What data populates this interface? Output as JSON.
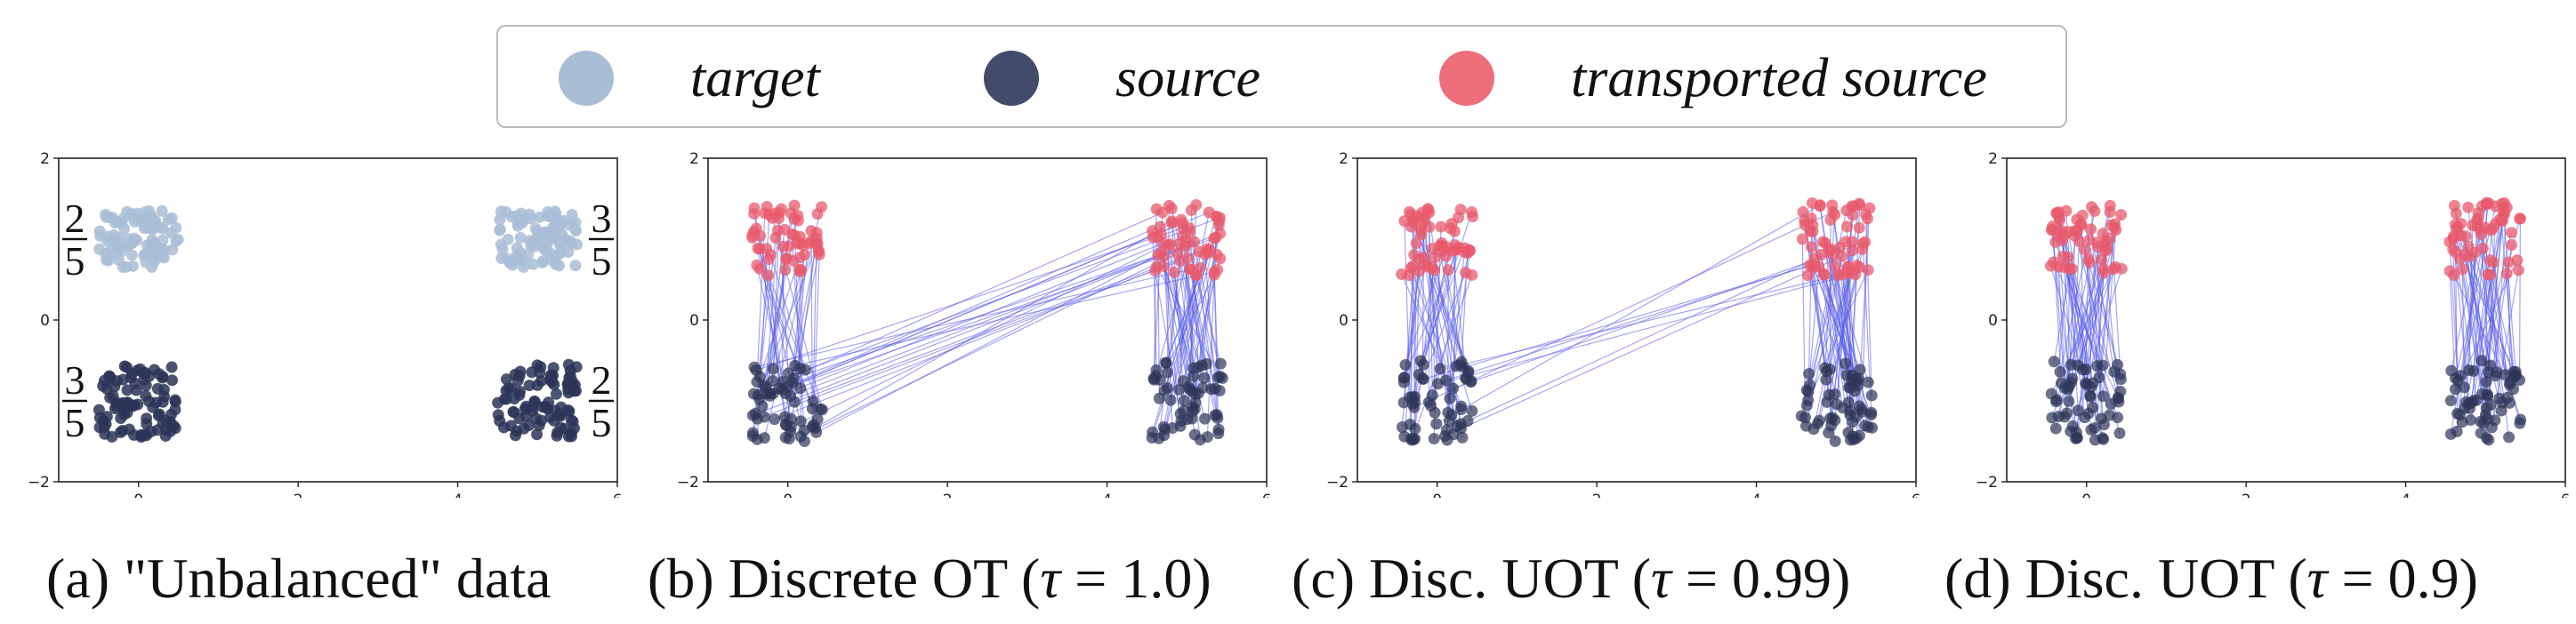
{
  "legend": {
    "items": [
      {
        "label": "target",
        "color": "#a9bdd6"
      },
      {
        "label": "source",
        "color": "#434b6b"
      },
      {
        "label": "transported source",
        "color": "#ec6e7a"
      }
    ]
  },
  "colors": {
    "target": "#a9bdd6",
    "source": "#2d3557",
    "transported": "#e85a6c",
    "transport_lines": "#5a5ee8"
  },
  "chart_data": [
    {
      "type": "scatter",
      "panel": "a",
      "caption": "(a) \"Unbalanced\" data",
      "xlim": [
        -1,
        6
      ],
      "ylim": [
        -2,
        2
      ],
      "xticks": [
        "0",
        "2",
        "4",
        "6"
      ],
      "yticks": [
        "-2",
        "0",
        "2"
      ],
      "grid": false,
      "series": [
        {
          "role": "target",
          "clusters": [
            {
              "center": [
                0,
                1.0
              ],
              "spread": [
                0.5,
                0.35
              ],
              "mass_label": [
                "2",
                "5"
              ]
            },
            {
              "center": [
                5,
                1.0
              ],
              "spread": [
                0.5,
                0.35
              ],
              "mass_label": [
                "3",
                "5"
              ]
            }
          ]
        },
        {
          "role": "source",
          "clusters": [
            {
              "center": [
                0,
                -1.0
              ],
              "spread": [
                0.5,
                0.45
              ],
              "mass_label": [
                "3",
                "5"
              ]
            },
            {
              "center": [
                5,
                -1.0
              ],
              "spread": [
                0.5,
                0.45
              ],
              "mass_label": [
                "2",
                "5"
              ]
            }
          ]
        }
      ]
    },
    {
      "type": "scatter",
      "panel": "b",
      "caption_prefix": "(b) Discrete OT (",
      "tau_symbol": "τ",
      "tau_expr": " = 1.0",
      "caption_suffix": ")",
      "tau": 1.0,
      "xlim": [
        -1,
        6
      ],
      "ylim": [
        -2,
        2
      ],
      "xticks": [
        "0",
        "2",
        "4",
        "6"
      ],
      "yticks": [
        "-2",
        "0",
        "2"
      ],
      "source_clusters": [
        [
          0,
          -1.0
        ],
        [
          5,
          -1.0
        ]
      ],
      "transported_clusters": [
        [
          0,
          1.0
        ],
        [
          5,
          1.0
        ]
      ],
      "crossing_fraction": 0.33
    },
    {
      "type": "scatter",
      "panel": "c",
      "caption_prefix": "(c) Disc. UOT (",
      "tau_symbol": "τ",
      "tau_expr": " = 0.99",
      "caption_suffix": ")",
      "tau": 0.99,
      "xlim": [
        -1,
        6
      ],
      "ylim": [
        -2,
        2
      ],
      "xticks": [
        "0",
        "2",
        "4",
        "6"
      ],
      "yticks": [
        "-2",
        "0",
        "2"
      ],
      "source_clusters": [
        [
          0,
          -1.0
        ],
        [
          5,
          -1.0
        ]
      ],
      "transported_clusters": [
        [
          0,
          1.0
        ],
        [
          5,
          1.0
        ]
      ],
      "crossing_fraction": 0.15
    },
    {
      "type": "scatter",
      "panel": "d",
      "caption_prefix": "(d) Disc. UOT (",
      "tau_symbol": "τ",
      "tau_expr": " = 0.9",
      "caption_suffix": ")",
      "tau": 0.9,
      "xlim": [
        -1,
        6
      ],
      "ylim": [
        -2,
        2
      ],
      "xticks": [
        "0",
        "2",
        "4",
        "6"
      ],
      "yticks": [
        "-2",
        "0",
        "2"
      ],
      "source_clusters": [
        [
          0,
          -1.0
        ],
        [
          5,
          -1.0
        ]
      ],
      "transported_clusters": [
        [
          0,
          1.0
        ],
        [
          5,
          1.0
        ]
      ],
      "crossing_fraction": 0.0
    }
  ]
}
